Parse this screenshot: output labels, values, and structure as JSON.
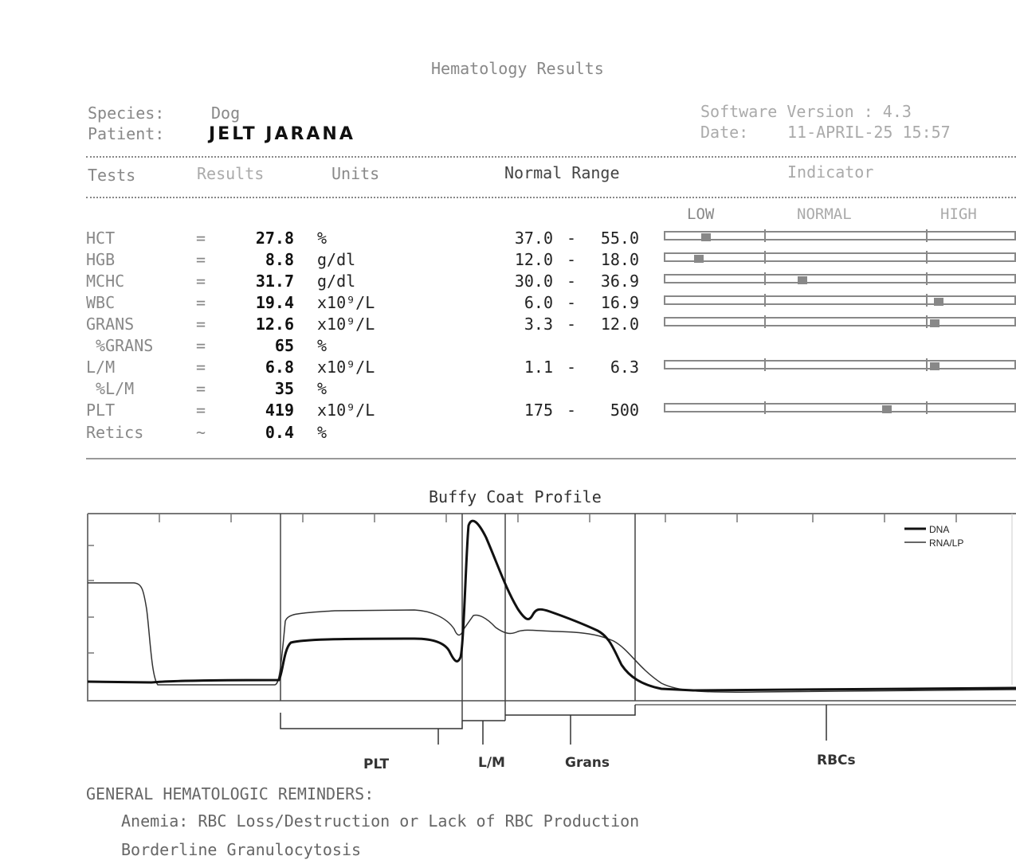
{
  "report": {
    "title": "Hematology Results",
    "species_label": "Species:",
    "species_value": "Dog",
    "patient_label": "Patient:",
    "patient_value": "JELT JARANA",
    "software_label": "Software Version : 4.3",
    "date_label": "Date:",
    "date_value": "11-APRIL-25 15:57"
  },
  "table": {
    "headers": {
      "tests": "Tests",
      "results": "Results",
      "units": "Units",
      "range": "Normal Range",
      "indicator": "Indicator"
    },
    "indicator_labels": {
      "low": "LOW",
      "normal": "NORMAL",
      "high": "HIGH"
    },
    "rows": [
      {
        "test": "HCT",
        "eq": "=",
        "result": "27.8",
        "unit": "%",
        "range_low": "37.0",
        "dash": "-",
        "range_high": "55.0",
        "indicator": 0.115
      },
      {
        "test": "HGB",
        "eq": "=",
        "result": "8.8",
        "unit": "g/dl",
        "range_low": "12.0",
        "dash": "-",
        "range_high": "18.0",
        "indicator": 0.095
      },
      {
        "test": "MCHC",
        "eq": "=",
        "result": "31.7",
        "unit": "g/dl",
        "range_low": "30.0",
        "dash": "-",
        "range_high": "36.9",
        "indicator": 0.39
      },
      {
        "test": "WBC",
        "eq": "=",
        "result": "19.4",
        "unit": "x10⁹/L",
        "range_low": "6.0",
        "dash": "-",
        "range_high": "16.9",
        "indicator": 0.775
      },
      {
        "test": "GRANS",
        "eq": "=",
        "result": "12.6",
        "unit": "x10⁹/L",
        "range_low": "3.3",
        "dash": "-",
        "range_high": "12.0",
        "indicator": 0.765
      },
      {
        "test": " %GRANS",
        "eq": "=",
        "result": "65",
        "unit": "%",
        "range_low": "",
        "dash": "",
        "range_high": "",
        "indicator": null
      },
      {
        "test": "L/M",
        "eq": "=",
        "result": "6.8",
        "unit": "x10⁹/L",
        "range_low": "1.1",
        "dash": "-",
        "range_high": "6.3",
        "indicator": 0.765
      },
      {
        "test": " %L/M",
        "eq": "=",
        "result": "35",
        "unit": "%",
        "range_low": "",
        "dash": "",
        "range_high": "",
        "indicator": null
      },
      {
        "test": "PLT",
        "eq": "=",
        "result": "419",
        "unit": "x10⁹/L",
        "range_low": "175",
        "dash": "-",
        "range_high": "500",
        "indicator": 0.63
      },
      {
        "test": "Retics",
        "eq": "~",
        "result": "0.4",
        "unit": "%",
        "range_low": "",
        "dash": "",
        "range_high": "",
        "indicator": null
      }
    ]
  },
  "chart_data": {
    "type": "line",
    "title": "Buffy Coat Profile",
    "legend": [
      "DNA",
      "RNA/LP"
    ],
    "legend_position": "top-right",
    "regions": [
      "PLT",
      "L/M",
      "Grans",
      "RBCs"
    ],
    "series": [
      {
        "name": "DNA",
        "values": []
      },
      {
        "name": "RNA/LP",
        "values": []
      }
    ]
  },
  "reminders": {
    "heading": "GENERAL HEMATOLOGIC REMINDERS:",
    "items": [
      "Anemia: RBC Loss/Destruction or Lack of RBC Production",
      "Borderline Granulocytosis"
    ]
  }
}
